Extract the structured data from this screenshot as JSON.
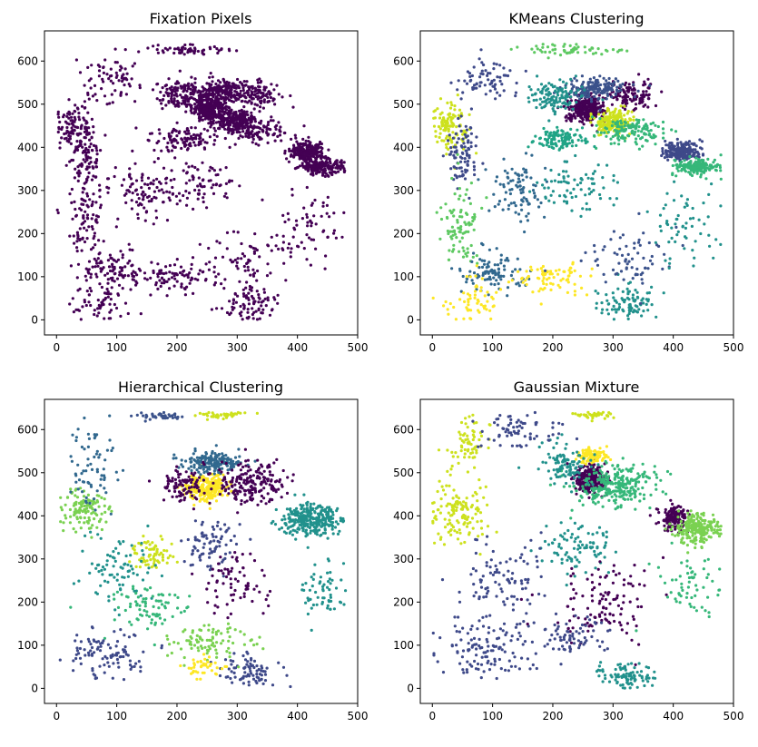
{
  "chart_data": [
    {
      "type": "scatter",
      "title": "Fixation Pixels",
      "xlim": [
        -20,
        500
      ],
      "ylim": [
        -35,
        670
      ],
      "xticks": [
        0,
        100,
        200,
        300,
        400,
        500
      ],
      "yticks": [
        0,
        100,
        200,
        300,
        400,
        500,
        600
      ],
      "color_mode": "single",
      "single_color": "#440154",
      "clusters": []
    },
    {
      "type": "scatter",
      "title": "KMeans Clustering",
      "xlim": [
        -20,
        500
      ],
      "ylim": [
        -35,
        670
      ],
      "xticks": [
        0,
        100,
        200,
        300,
        400,
        500
      ],
      "yticks": [
        0,
        100,
        200,
        300,
        400,
        500,
        600
      ],
      "color_mode": "clusters",
      "clusters": [
        {
          "color": "#440154",
          "cx": 255,
          "cy": 490,
          "rx": 25,
          "ry": 25,
          "n": 320
        },
        {
          "color": "#440154",
          "cx": 330,
          "cy": 520,
          "rx": 35,
          "ry": 25,
          "n": 120
        },
        {
          "color": "#3b528b",
          "cx": 270,
          "cy": 535,
          "rx": 40,
          "ry": 22,
          "n": 170
        },
        {
          "color": "#21918c",
          "cx": 205,
          "cy": 520,
          "rx": 35,
          "ry": 30,
          "n": 120
        },
        {
          "color": "#cde11d",
          "cx": 300,
          "cy": 460,
          "rx": 25,
          "ry": 22,
          "n": 190
        },
        {
          "color": "#3e4989",
          "cx": 415,
          "cy": 390,
          "rx": 25,
          "ry": 20,
          "n": 220
        },
        {
          "color": "#35b779",
          "cx": 440,
          "cy": 355,
          "rx": 30,
          "ry": 15,
          "n": 180
        },
        {
          "color": "#35b779",
          "cx": 330,
          "cy": 440,
          "rx": 45,
          "ry": 25,
          "n": 130
        },
        {
          "color": "#20a486",
          "cx": 210,
          "cy": 420,
          "rx": 40,
          "ry": 25,
          "n": 110
        },
        {
          "color": "#cde11d",
          "cx": 30,
          "cy": 450,
          "rx": 25,
          "ry": 50,
          "n": 110
        },
        {
          "color": "#3e4989",
          "cx": 50,
          "cy": 380,
          "rx": 20,
          "ry": 80,
          "n": 90
        },
        {
          "color": "#3e4989",
          "cx": 90,
          "cy": 560,
          "rx": 40,
          "ry": 40,
          "n": 70
        },
        {
          "color": "#5ec962",
          "cx": 225,
          "cy": 625,
          "rx": 60,
          "ry": 10,
          "n": 60
        },
        {
          "color": "#31688e",
          "cx": 140,
          "cy": 300,
          "rx": 40,
          "ry": 60,
          "n": 90
        },
        {
          "color": "#21918c",
          "cx": 240,
          "cy": 310,
          "rx": 50,
          "ry": 50,
          "n": 80
        },
        {
          "color": "#5ec962",
          "cx": 50,
          "cy": 220,
          "rx": 30,
          "ry": 90,
          "n": 90
        },
        {
          "color": "#31688e",
          "cx": 100,
          "cy": 110,
          "rx": 50,
          "ry": 40,
          "n": 100
        },
        {
          "color": "#fde725",
          "cx": 70,
          "cy": 40,
          "rx": 40,
          "ry": 40,
          "n": 60
        },
        {
          "color": "#fde725",
          "cx": 200,
          "cy": 100,
          "rx": 50,
          "ry": 30,
          "n": 80
        },
        {
          "color": "#21918c",
          "cx": 320,
          "cy": 40,
          "rx": 40,
          "ry": 35,
          "n": 90
        },
        {
          "color": "#3b528b",
          "cx": 320,
          "cy": 140,
          "rx": 60,
          "ry": 60,
          "n": 70
        },
        {
          "color": "#21918c",
          "cx": 420,
          "cy": 220,
          "rx": 50,
          "ry": 70,
          "n": 60
        }
      ]
    },
    {
      "type": "scatter",
      "title": "Hierarchical Clustering",
      "xlim": [
        -20,
        500
      ],
      "ylim": [
        -35,
        670
      ],
      "xticks": [
        0,
        100,
        200,
        300,
        400,
        500
      ],
      "yticks": [
        0,
        100,
        200,
        300,
        400,
        500,
        600
      ],
      "color_mode": "clusters",
      "clusters": [
        {
          "color": "#fde725",
          "cx": 250,
          "cy": 465,
          "rx": 30,
          "ry": 25,
          "n": 260
        },
        {
          "color": "#31688e",
          "cx": 260,
          "cy": 525,
          "rx": 40,
          "ry": 20,
          "n": 180
        },
        {
          "color": "#440154",
          "cx": 320,
          "cy": 475,
          "rx": 50,
          "ry": 40,
          "n": 200
        },
        {
          "color": "#440154",
          "cx": 205,
          "cy": 470,
          "rx": 30,
          "ry": 30,
          "n": 90
        },
        {
          "color": "#21918c",
          "cx": 420,
          "cy": 390,
          "rx": 40,
          "ry": 30,
          "n": 300
        },
        {
          "color": "#7ad151",
          "cx": 45,
          "cy": 420,
          "rx": 35,
          "ry": 40,
          "n": 120
        },
        {
          "color": "#31688e",
          "cx": 60,
          "cy": 520,
          "rx": 40,
          "ry": 80,
          "n": 70
        },
        {
          "color": "#3b528b",
          "cx": 170,
          "cy": 630,
          "rx": 40,
          "ry": 8,
          "n": 40
        },
        {
          "color": "#cde11d",
          "cx": 270,
          "cy": 635,
          "rx": 30,
          "ry": 8,
          "n": 40
        },
        {
          "color": "#cde11d",
          "cx": 160,
          "cy": 310,
          "rx": 30,
          "ry": 30,
          "n": 70
        },
        {
          "color": "#3e4989",
          "cx": 260,
          "cy": 330,
          "rx": 40,
          "ry": 50,
          "n": 80
        },
        {
          "color": "#21918c",
          "cx": 100,
          "cy": 280,
          "rx": 50,
          "ry": 70,
          "n": 80
        },
        {
          "color": "#35b779",
          "cx": 150,
          "cy": 190,
          "rx": 60,
          "ry": 50,
          "n": 80
        },
        {
          "color": "#440154",
          "cx": 300,
          "cy": 240,
          "rx": 50,
          "ry": 60,
          "n": 70
        },
        {
          "color": "#3e4989",
          "cx": 80,
          "cy": 80,
          "rx": 50,
          "ry": 50,
          "n": 100
        },
        {
          "color": "#3e4989",
          "cx": 320,
          "cy": 40,
          "rx": 40,
          "ry": 30,
          "n": 80
        },
        {
          "color": "#7ad151",
          "cx": 250,
          "cy": 110,
          "rx": 60,
          "ry": 30,
          "n": 90
        },
        {
          "color": "#fde725",
          "cx": 240,
          "cy": 50,
          "rx": 30,
          "ry": 20,
          "n": 40
        },
        {
          "color": "#21918c",
          "cx": 440,
          "cy": 230,
          "rx": 40,
          "ry": 60,
          "n": 60
        }
      ]
    },
    {
      "type": "scatter",
      "title": "Gaussian Mixture",
      "xlim": [
        -20,
        500
      ],
      "ylim": [
        -35,
        670
      ],
      "xticks": [
        0,
        100,
        200,
        300,
        400,
        500
      ],
      "yticks": [
        0,
        100,
        200,
        300,
        400,
        500,
        600
      ],
      "color_mode": "clusters",
      "clusters": [
        {
          "color": "#440154",
          "cx": 262,
          "cy": 485,
          "rx": 22,
          "ry": 28,
          "n": 280
        },
        {
          "color": "#fde725",
          "cx": 265,
          "cy": 540,
          "rx": 20,
          "ry": 15,
          "n": 110
        },
        {
          "color": "#35b779",
          "cx": 300,
          "cy": 470,
          "rx": 60,
          "ry": 40,
          "n": 260
        },
        {
          "color": "#21918c",
          "cx": 220,
          "cy": 520,
          "rx": 40,
          "ry": 40,
          "n": 100
        },
        {
          "color": "#440154",
          "cx": 400,
          "cy": 395,
          "rx": 20,
          "ry": 25,
          "n": 150
        },
        {
          "color": "#7ad151",
          "cx": 440,
          "cy": 370,
          "rx": 30,
          "ry": 30,
          "n": 230
        },
        {
          "color": "#cde11d",
          "cx": 40,
          "cy": 400,
          "rx": 40,
          "ry": 60,
          "n": 130
        },
        {
          "color": "#cde11d",
          "cx": 60,
          "cy": 560,
          "rx": 30,
          "ry": 60,
          "n": 70
        },
        {
          "color": "#3e4989",
          "cx": 140,
          "cy": 600,
          "rx": 60,
          "ry": 40,
          "n": 70
        },
        {
          "color": "#cde11d",
          "cx": 270,
          "cy": 635,
          "rx": 30,
          "ry": 8,
          "n": 40
        },
        {
          "color": "#21918c",
          "cx": 240,
          "cy": 330,
          "rx": 50,
          "ry": 50,
          "n": 90
        },
        {
          "color": "#3e4989",
          "cx": 120,
          "cy": 250,
          "rx": 60,
          "ry": 90,
          "n": 100
        },
        {
          "color": "#3e4989",
          "cx": 90,
          "cy": 90,
          "rx": 60,
          "ry": 60,
          "n": 120
        },
        {
          "color": "#440154",
          "cx": 280,
          "cy": 200,
          "rx": 70,
          "ry": 80,
          "n": 120
        },
        {
          "color": "#21918c",
          "cx": 320,
          "cy": 30,
          "rx": 40,
          "ry": 25,
          "n": 90
        },
        {
          "color": "#3e4989",
          "cx": 230,
          "cy": 120,
          "rx": 50,
          "ry": 40,
          "n": 70
        },
        {
          "color": "#35b779",
          "cx": 430,
          "cy": 240,
          "rx": 40,
          "ry": 60,
          "n": 60
        }
      ]
    }
  ]
}
